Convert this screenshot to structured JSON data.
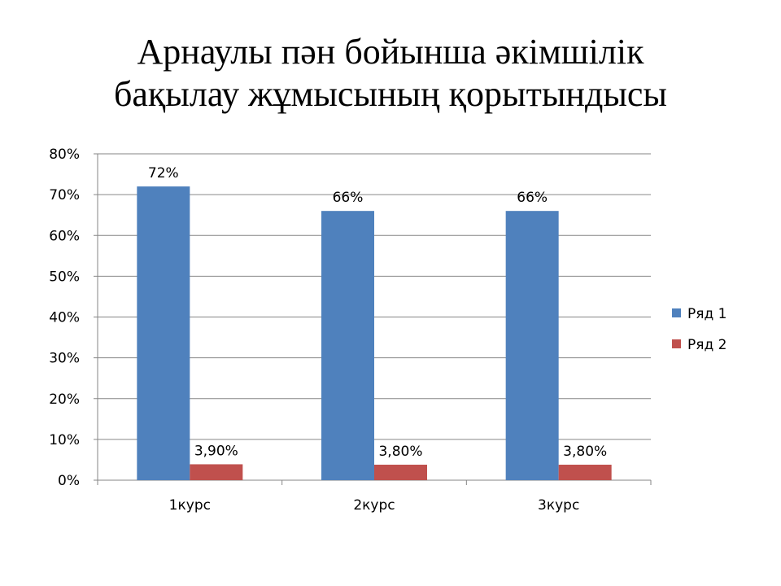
{
  "title_lines": [
    "Арнаулы пән бойынша әкімшілік",
    "бақылау жұмысының қорытындысы"
  ],
  "chart_data": {
    "type": "bar",
    "title": "",
    "xlabel": "",
    "ylabel": "",
    "categories": [
      "1курс",
      "2курс",
      "3курс"
    ],
    "series": [
      {
        "name": "Ряд 1",
        "values": [
          72,
          66,
          66
        ],
        "labels": [
          "72%",
          "66%",
          "66%"
        ],
        "color": "#4F81BD"
      },
      {
        "name": "Ряд 2",
        "values": [
          3.9,
          3.8,
          3.8
        ],
        "labels": [
          "3,90%",
          "3,80%",
          "3,80%"
        ],
        "color": "#C0504D"
      }
    ],
    "ylim": [
      0,
      80
    ],
    "yticks": [
      0,
      10,
      20,
      30,
      40,
      50,
      60,
      70,
      80
    ],
    "ytick_labels": [
      "0%",
      "10%",
      "20%",
      "30%",
      "40%",
      "50%",
      "60%",
      "70%",
      "80%"
    ],
    "grid": true,
    "gridline_color": "#868686",
    "legend_position": "right"
  }
}
